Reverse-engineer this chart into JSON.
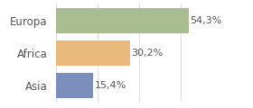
{
  "categories": [
    "Europa",
    "Africa",
    "Asia"
  ],
  "values": [
    54.3,
    30.2,
    15.4
  ],
  "labels": [
    "54,3%",
    "30,2%",
    "15,4%"
  ],
  "colors": [
    "#a8bc8f",
    "#e8b97a",
    "#7a8fbc"
  ],
  "xlim": [
    0,
    68
  ],
  "background_color": "#ffffff",
  "bar_height": 0.78,
  "label_fontsize": 8,
  "tick_fontsize": 8.5,
  "grid_color": "#d8d8d8"
}
